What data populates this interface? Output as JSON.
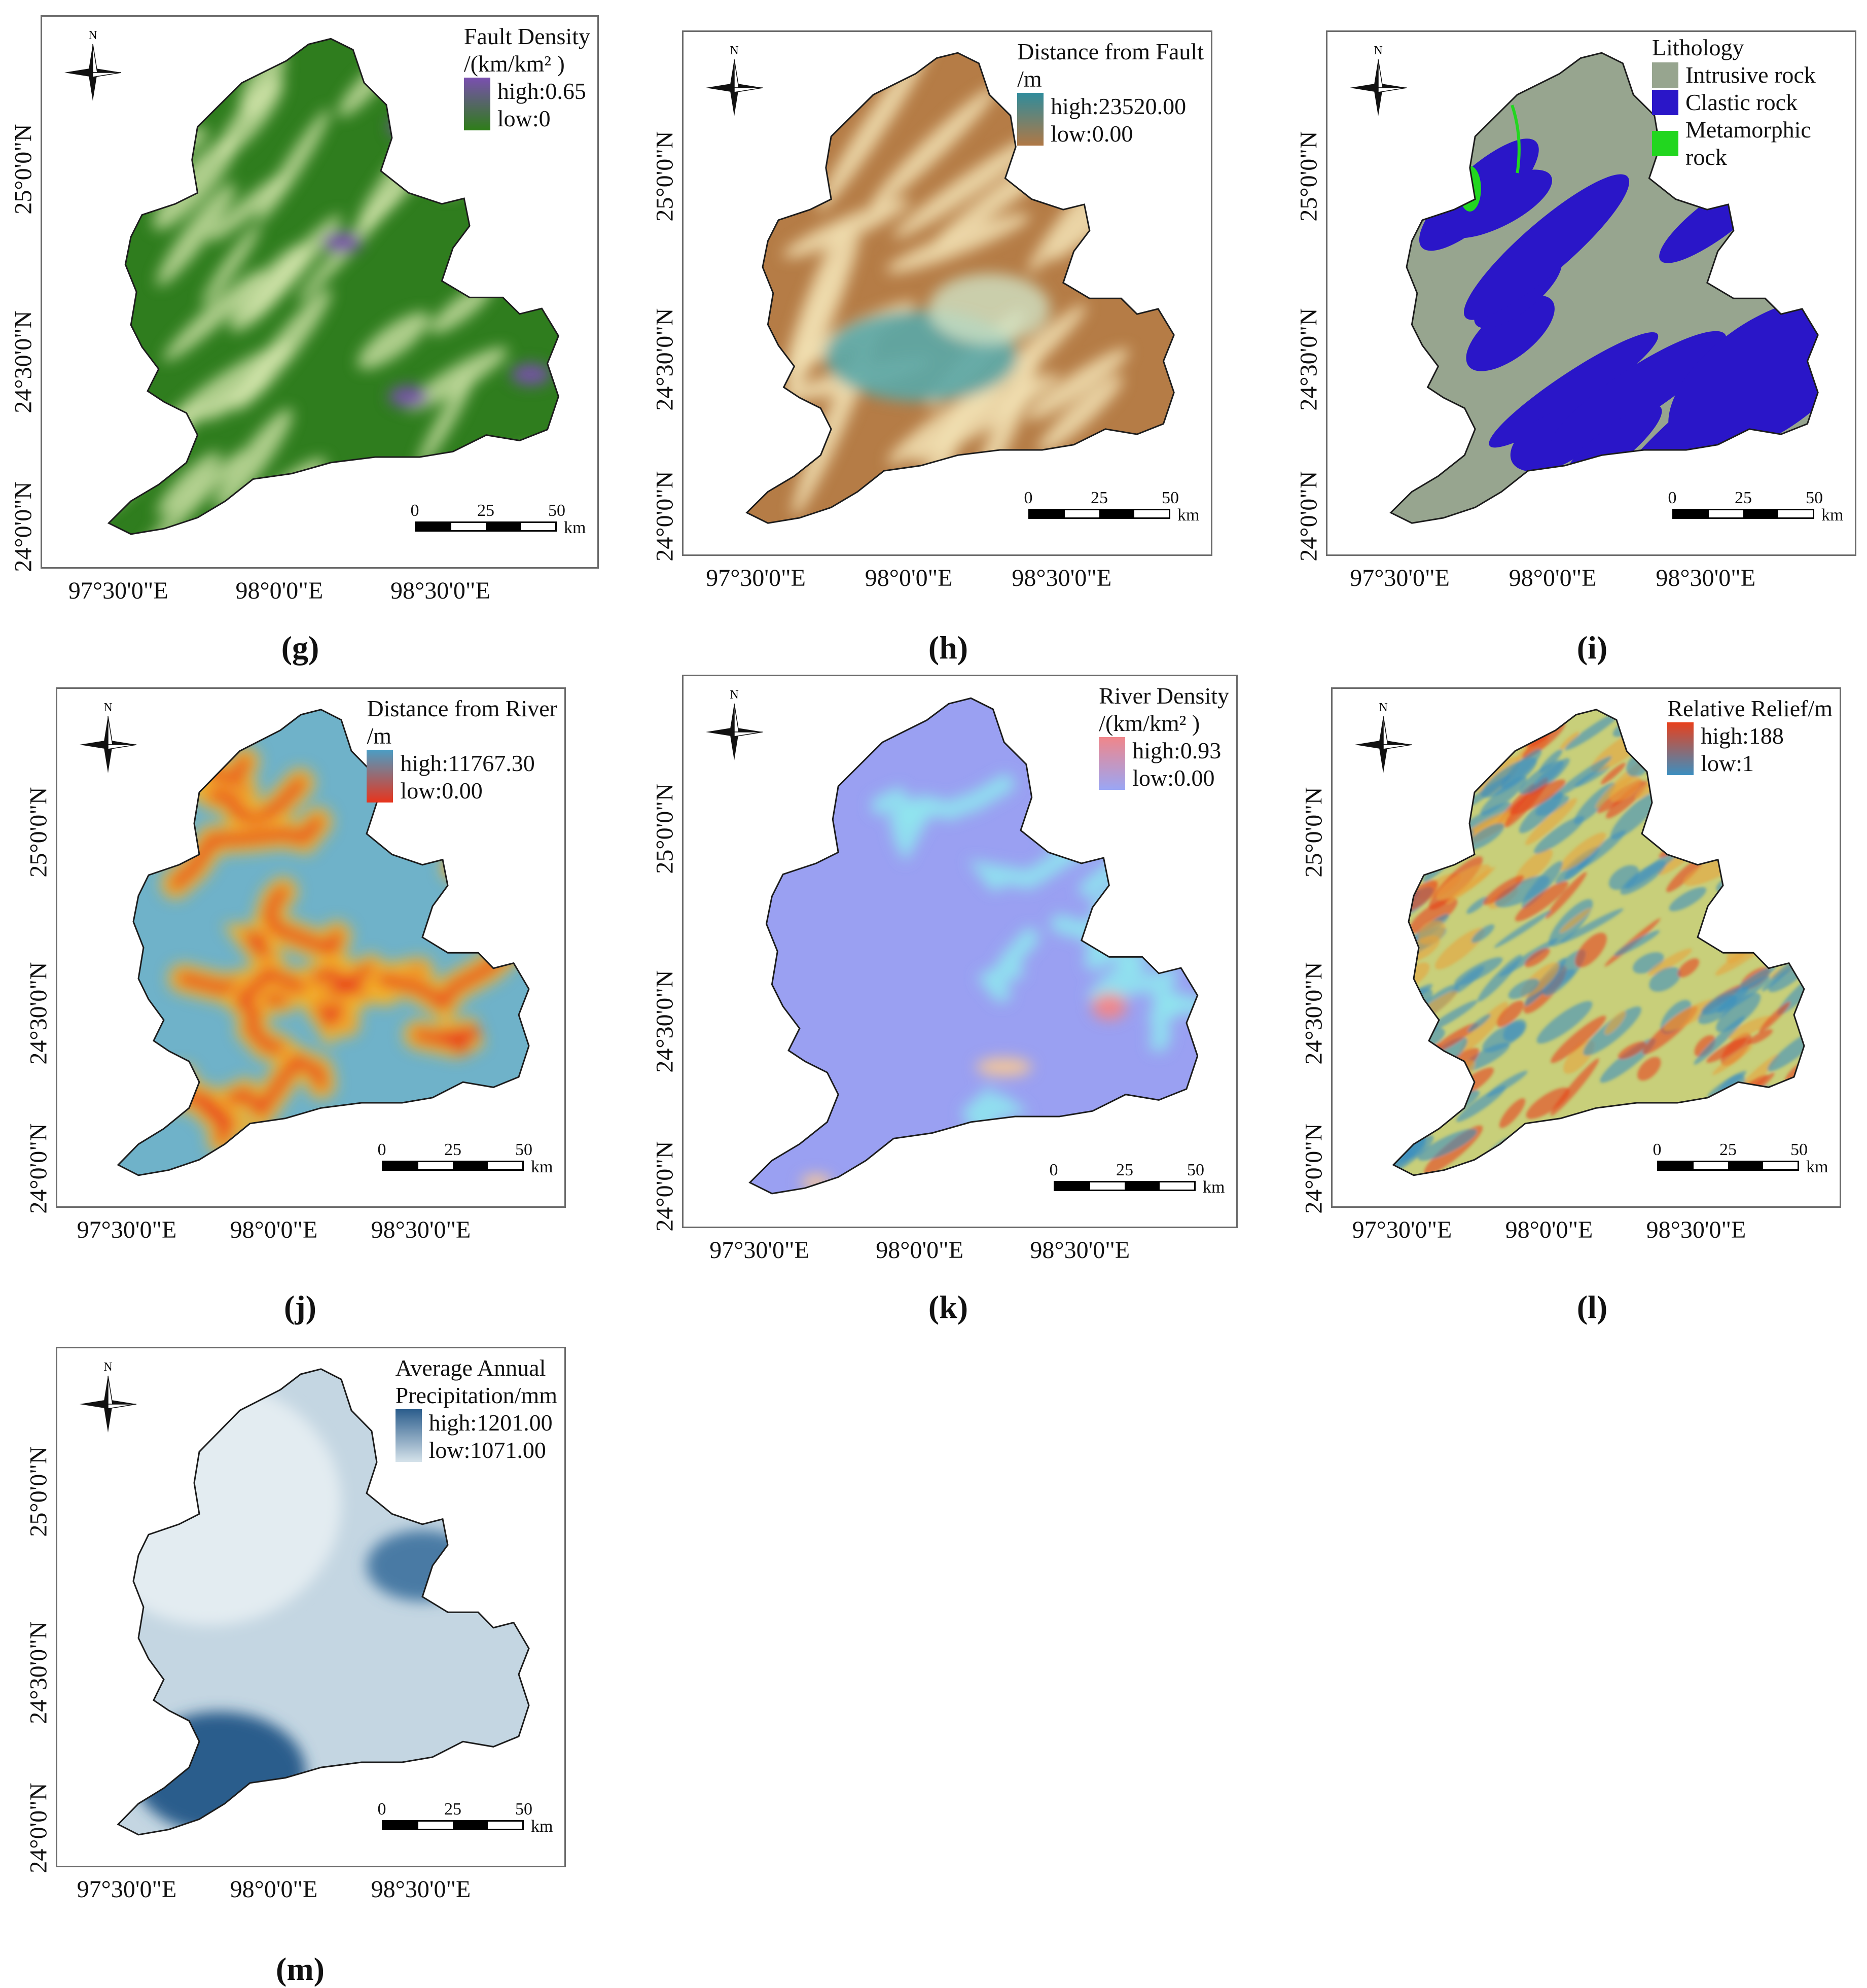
{
  "coord_labels": {
    "latitude": [
      "25°0'0\"N",
      "24°30'0\"N",
      "24°0'0\"N"
    ],
    "longitude": [
      "97°30'0\"E",
      "98°0'0\"E",
      "98°30'0\"E"
    ]
  },
  "north_arrow": {
    "letter": "N",
    "icon": "north-arrow-icon"
  },
  "scale_bar": {
    "ticks": [
      "0",
      "25",
      "50"
    ],
    "unit": "km"
  },
  "panels": [
    {
      "id": "g",
      "label": "(g)",
      "legend_title": [
        "Fault Density",
        "/(km/km² )"
      ],
      "legend_type": "gradient",
      "legend_entries": [
        "high:0.65",
        "low:0"
      ],
      "colors": {
        "high": "#7a4fb0",
        "low": "#2e7d18",
        "base": "#2f7d1e"
      }
    },
    {
      "id": "h",
      "label": "(h)",
      "legend_title": [
        "Distance from Fault",
        "/m"
      ],
      "legend_type": "gradient",
      "legend_entries": [
        "high:23520.00",
        "low:0.00"
      ],
      "colors": {
        "high": "#2f8c9c",
        "low": "#b07845",
        "base": "#b57c46"
      }
    },
    {
      "id": "i",
      "label": "(i)",
      "legend_title": [
        "Lithology"
      ],
      "legend_type": "classes",
      "legend_entries": [
        "Intrusive rock",
        "Clastic rock",
        "Metamorphic rock"
      ],
      "colors": {
        "Intrusive rock": "#97a58f",
        "Clastic rock": "#2a16c8",
        "Metamorphic rock": "#22d61f",
        "base": "#97a58f"
      }
    },
    {
      "id": "j",
      "label": "(j)",
      "legend_title": [
        "Distance from River",
        "/m"
      ],
      "legend_type": "gradient",
      "legend_entries": [
        "high:11767.30",
        "low:0.00"
      ],
      "colors": {
        "high": "#4a9ec5",
        "low": "#e8341c",
        "base": "#6fb2c9"
      }
    },
    {
      "id": "k",
      "label": "(k)",
      "legend_title": [
        "River Density",
        "/(km/km² )"
      ],
      "legend_type": "gradient",
      "legend_entries": [
        "high:0.93",
        "low:0.00"
      ],
      "colors": {
        "high": "#f0868a",
        "low": "#9aa6f5",
        "base": "#9aa0f2"
      }
    },
    {
      "id": "l",
      "label": "(l)",
      "legend_title": [
        "Relative Relief/m"
      ],
      "legend_type": "gradient",
      "legend_entries": [
        "high:188",
        "low:1"
      ],
      "colors": {
        "high": "#e8401c",
        "low": "#3c8fc0",
        "base": "#c8cf7a"
      }
    },
    {
      "id": "m",
      "label": "(m)",
      "legend_title": [
        "Average Annual",
        "Precipitation/mm"
      ],
      "legend_type": "gradient",
      "legend_entries": [
        "high:1201.00",
        "low:1071.00"
      ],
      "colors": {
        "high": "#2b5d8c",
        "low": "#d5e2ea",
        "base": "#c4d6e2"
      }
    }
  ]
}
